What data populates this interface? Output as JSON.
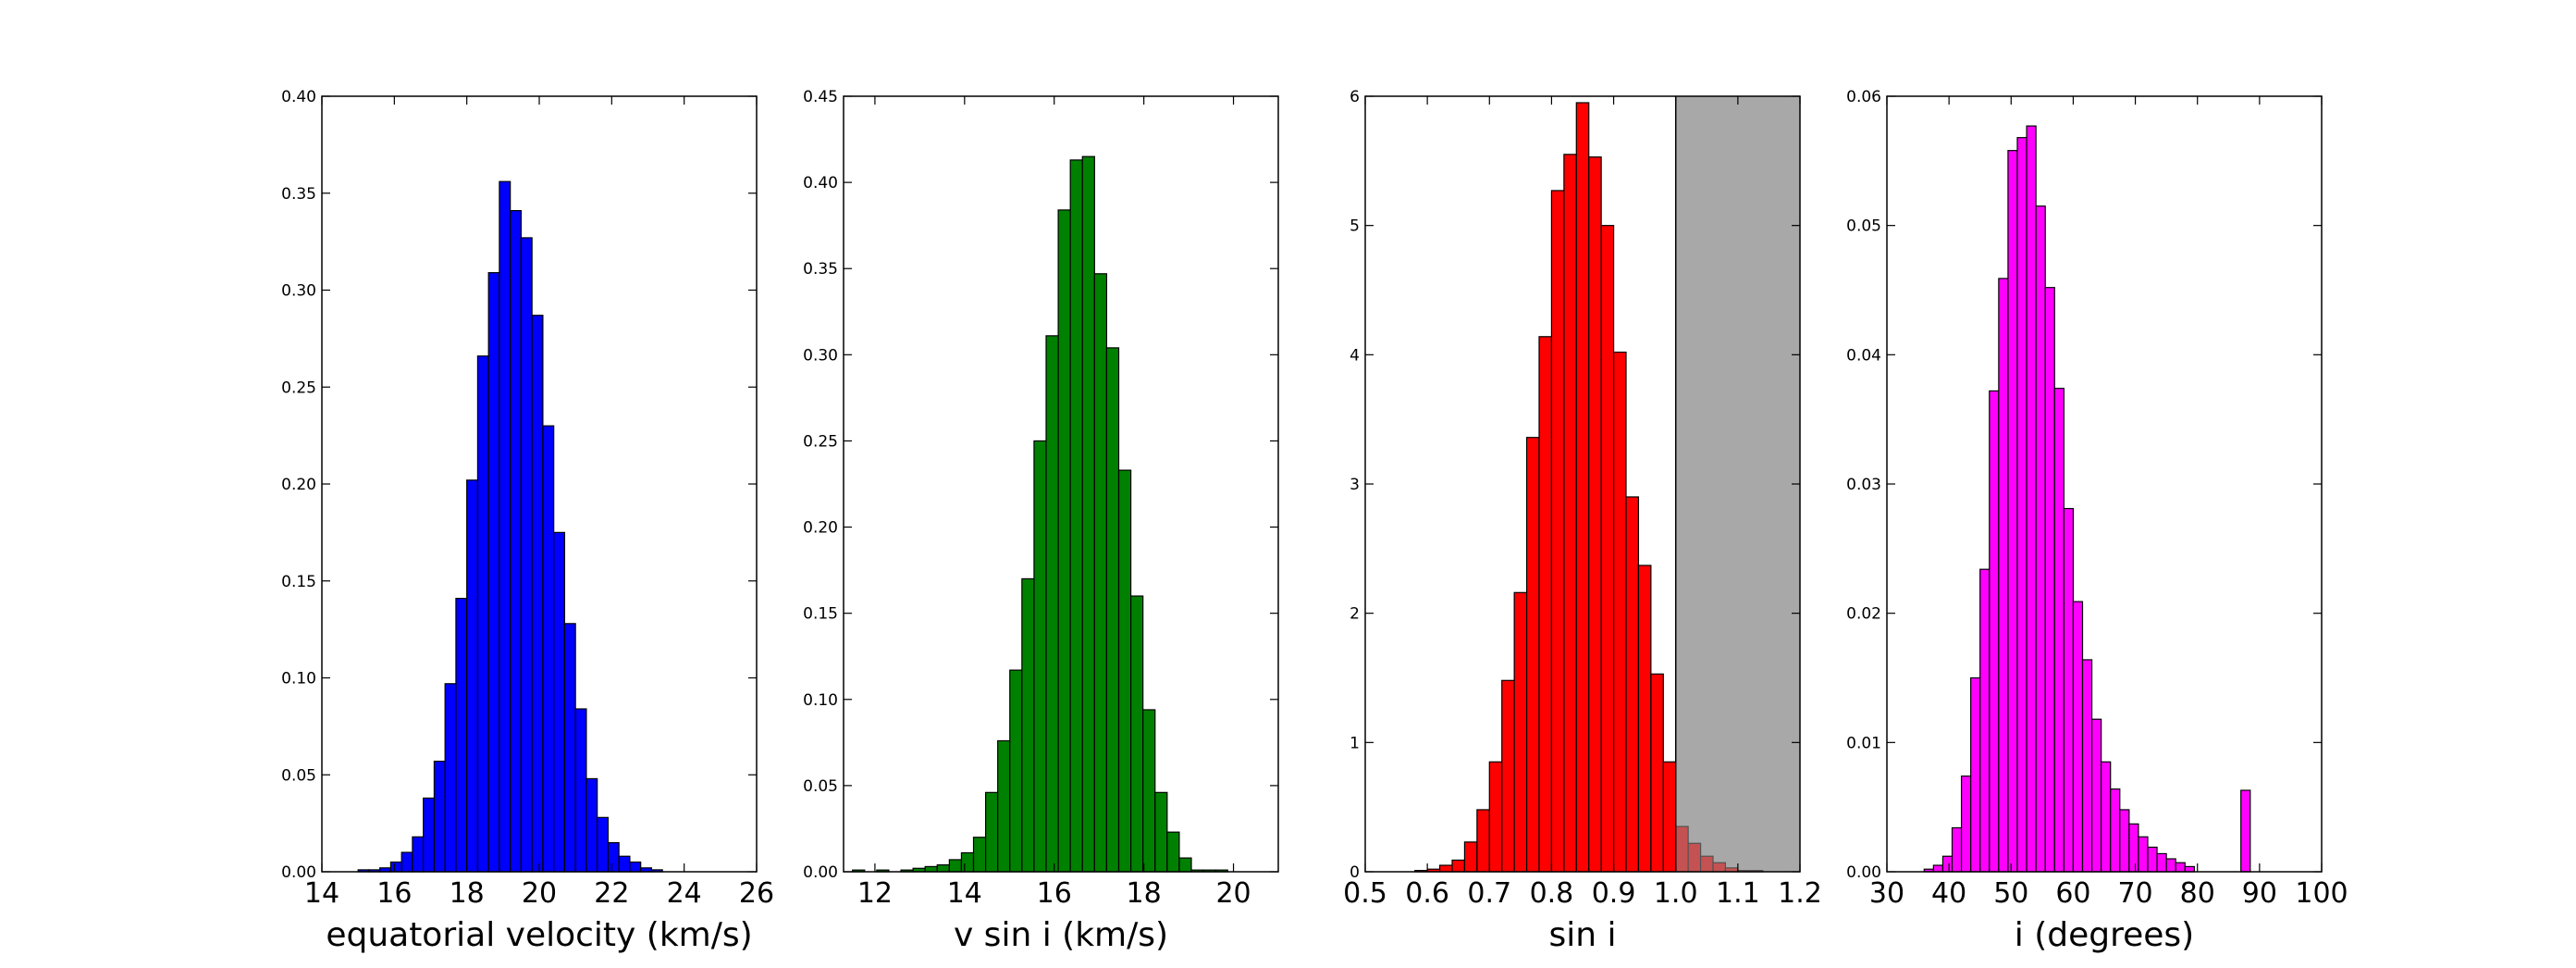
{
  "chart_data": [
    {
      "type": "bar",
      "xlabel": "equatorial velocity (km/s)",
      "xlim": [
        14,
        26
      ],
      "ylim": [
        0,
        0.4
      ],
      "xticks": [
        14,
        16,
        18,
        20,
        22,
        24,
        26
      ],
      "yticks": [
        0.0,
        0.05,
        0.1,
        0.15,
        0.2,
        0.25,
        0.3,
        0.35,
        0.4
      ],
      "x_tick_labels": [
        "14",
        "16",
        "18",
        "20",
        "22",
        "24",
        "26"
      ],
      "y_tick_labels": [
        "0.00",
        "0.05",
        "0.10",
        "0.15",
        "0.20",
        "0.25",
        "0.30",
        "0.35",
        "0.40"
      ],
      "bin_start": 15.0,
      "bin_width": 0.3,
      "values": [
        0.001,
        0.001,
        0.002,
        0.005,
        0.01,
        0.018,
        0.038,
        0.057,
        0.097,
        0.141,
        0.202,
        0.266,
        0.309,
        0.356,
        0.341,
        0.327,
        0.287,
        0.23,
        0.175,
        0.128,
        0.084,
        0.048,
        0.028,
        0.015,
        0.008,
        0.005,
        0.002,
        0.001
      ],
      "color": "#0000ff",
      "shaded_region": null
    },
    {
      "type": "bar",
      "xlabel": "v sin i (km/s)",
      "xlim": [
        11.3,
        21
      ],
      "ylim": [
        0,
        0.45
      ],
      "xticks": [
        12,
        14,
        16,
        18,
        20
      ],
      "yticks": [
        0.0,
        0.05,
        0.1,
        0.15,
        0.2,
        0.25,
        0.3,
        0.35,
        0.4,
        0.45
      ],
      "x_tick_labels": [
        "12",
        "14",
        "16",
        "18",
        "20"
      ],
      "y_tick_labels": [
        "0.00",
        "0.05",
        "0.10",
        "0.15",
        "0.20",
        "0.25",
        "0.30",
        "0.35",
        "0.40",
        "0.45"
      ],
      "bin_start": 11.5,
      "bin_width": 0.27,
      "values": [
        0.001,
        0.0,
        0.001,
        0.0,
        0.001,
        0.002,
        0.003,
        0.004,
        0.007,
        0.011,
        0.02,
        0.046,
        0.076,
        0.117,
        0.17,
        0.25,
        0.311,
        0.384,
        0.413,
        0.415,
        0.347,
        0.304,
        0.233,
        0.16,
        0.094,
        0.046,
        0.023,
        0.008,
        0.001,
        0.001,
        0.001
      ],
      "color": "#008000",
      "shaded_region": null
    },
    {
      "type": "bar",
      "xlabel": "sin i",
      "xlim": [
        0.5,
        1.2
      ],
      "ylim": [
        0,
        6
      ],
      "xticks": [
        0.5,
        0.6,
        0.7,
        0.8,
        0.9,
        1.0,
        1.1,
        1.2
      ],
      "yticks": [
        0,
        1,
        2,
        3,
        4,
        5,
        6
      ],
      "x_tick_labels": [
        "0.5",
        "0.6",
        "0.7",
        "0.8",
        "0.9",
        "1.0",
        "1.1",
        "1.2"
      ],
      "y_tick_labels": [
        "0",
        "1",
        "2",
        "3",
        "4",
        "5",
        "6"
      ],
      "bin_start": 0.58,
      "bin_width": 0.02,
      "values": [
        0.01,
        0.02,
        0.05,
        0.09,
        0.23,
        0.48,
        0.85,
        1.48,
        2.16,
        3.36,
        4.14,
        5.27,
        5.55,
        5.95,
        5.53,
        5.0,
        4.02,
        2.9,
        2.37,
        1.53,
        0.85,
        0.35,
        0.22,
        0.12,
        0.07,
        0.03,
        0.01,
        0.01
      ],
      "color": "#ff0000",
      "shaded_region": [
        1.0,
        1.2
      ],
      "shaded_color": "#bfbfbf"
    },
    {
      "type": "bar",
      "xlabel": "i (degrees)",
      "xlim": [
        30,
        100
      ],
      "ylim": [
        0,
        0.06
      ],
      "xticks": [
        30,
        40,
        50,
        60,
        70,
        80,
        90,
        100
      ],
      "yticks": [
        0.0,
        0.01,
        0.02,
        0.03,
        0.04,
        0.05,
        0.06
      ],
      "x_tick_labels": [
        "30",
        "40",
        "50",
        "60",
        "70",
        "80",
        "90",
        "100"
      ],
      "y_tick_labels": [
        "0.00",
        "0.01",
        "0.02",
        "0.03",
        "0.04",
        "0.05",
        "0.06"
      ],
      "bin_start": 36.0,
      "bin_width": 1.5,
      "values": [
        0.0002,
        0.0005,
        0.0012,
        0.0034,
        0.0074,
        0.015,
        0.0234,
        0.0372,
        0.0459,
        0.0558,
        0.0568,
        0.0577,
        0.0515,
        0.0452,
        0.0374,
        0.0281,
        0.0209,
        0.0164,
        0.0118,
        0.0085,
        0.0064,
        0.0048,
        0.0037,
        0.0027,
        0.0019,
        0.0014,
        0.001,
        0.0007,
        0.0004,
        0.0,
        0.0,
        0.0,
        0.0,
        0.0,
        0.0063
      ],
      "color": "#ff00ff",
      "shaded_region": null
    }
  ]
}
